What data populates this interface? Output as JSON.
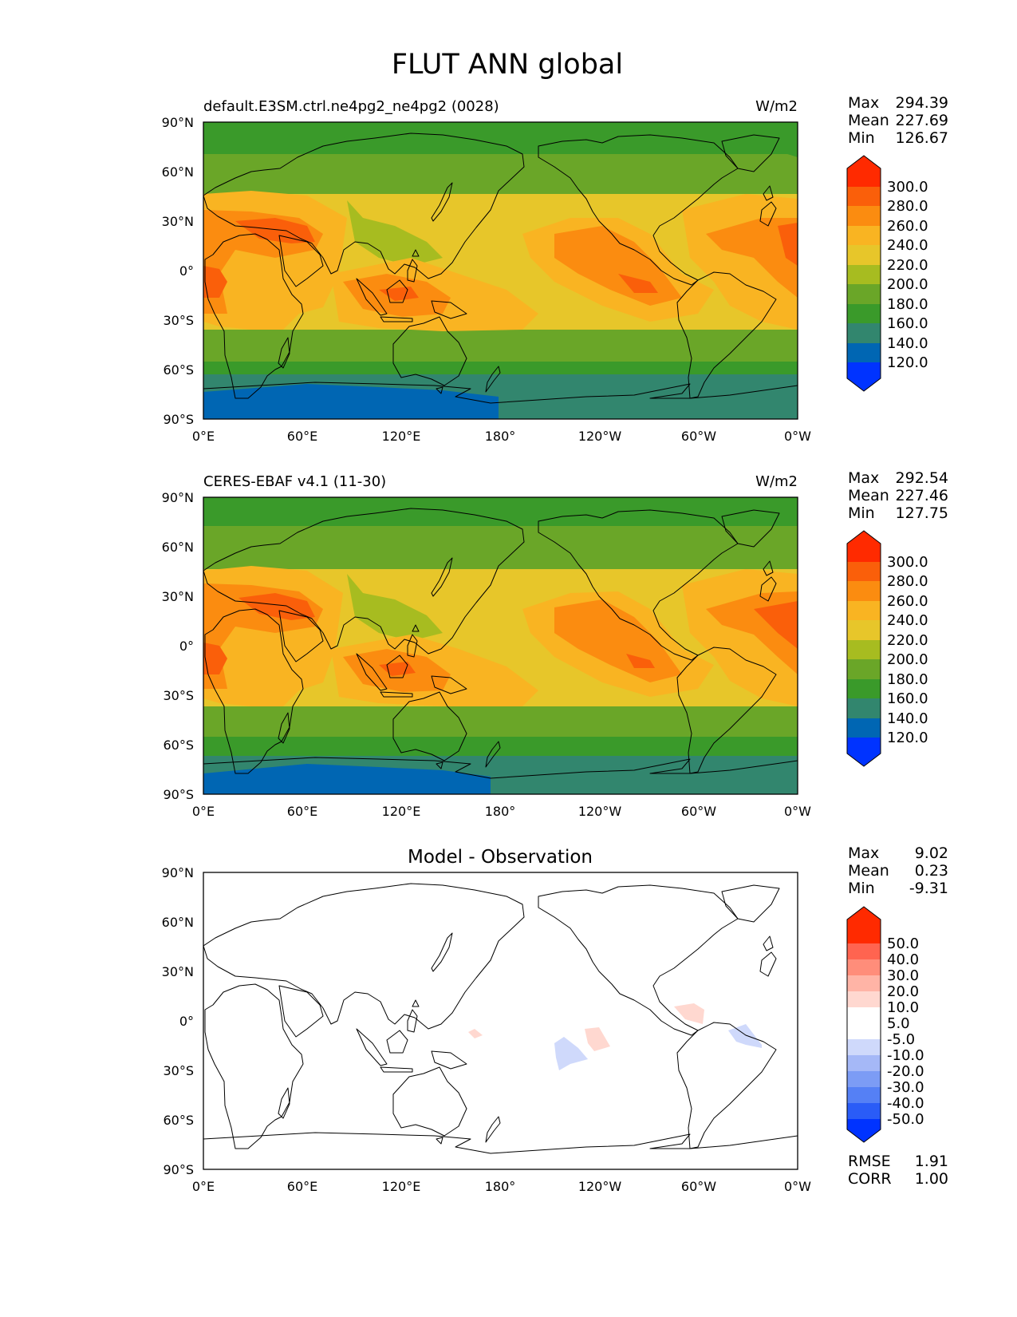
{
  "figure_title": "FLUT ANN global",
  "colors": {
    "ramp": [
      "#0033ff",
      "#0066b3",
      "#32866e",
      "#3a9a2a",
      "#6aa628",
      "#a7bc20",
      "#e7c62a",
      "#f9b422",
      "#fb8c10",
      "#fa5f0a",
      "#ff2a00"
    ],
    "diff": [
      "#0033ff",
      "#2a5cf7",
      "#5580f5",
      "#7c9cf5",
      "#a5b8f7",
      "#cfd9fb",
      "#ffffff",
      "#ffd8d0",
      "#ffb4a6",
      "#ff8d7a",
      "#ff6450",
      "#ff2a00"
    ]
  },
  "xticks": [
    "0°E",
    "60°E",
    "120°E",
    "180°",
    "120°W",
    "60°W",
    "0°W"
  ],
  "yticks": [
    "90°N",
    "60°N",
    "30°N",
    "0°",
    "30°S",
    "60°S",
    "90°S"
  ],
  "panels": [
    {
      "name": "test",
      "title_left": "default.E3SM.ctrl.ne4pg2_ne4pg2 (0028)",
      "title_right": "W/m2",
      "stats_labels": [
        "Max",
        "Mean",
        "Min"
      ],
      "stats_values": [
        "294.39",
        "227.69",
        "126.67"
      ],
      "colorbar_labels": [
        "300.0",
        "280.0",
        "260.0",
        "240.0",
        "220.0",
        "200.0",
        "180.0",
        "160.0",
        "140.0",
        "120.0"
      ]
    },
    {
      "name": "reference",
      "title_left": "CERES-EBAF v4.1 (11-30)",
      "title_right": "W/m2",
      "stats_labels": [
        "Max",
        "Mean",
        "Min"
      ],
      "stats_values": [
        "292.54",
        "227.46",
        "127.75"
      ],
      "colorbar_labels": [
        "300.0",
        "280.0",
        "260.0",
        "240.0",
        "220.0",
        "200.0",
        "180.0",
        "160.0",
        "140.0",
        "120.0"
      ]
    },
    {
      "name": "difference",
      "title_center": "Model - Observation",
      "stats_labels": [
        "Max",
        "Mean",
        "Min"
      ],
      "stats_values": [
        "9.02",
        "0.23",
        "-9.31"
      ],
      "colorbar_labels": [
        "50.0",
        "40.0",
        "30.0",
        "20.0",
        "10.0",
        "5.0",
        "-5.0",
        "-10.0",
        "-20.0",
        "-30.0",
        "-40.0",
        "-50.0"
      ],
      "metrics_labels": [
        "RMSE",
        "CORR"
      ],
      "metrics_values": [
        "1.91",
        "1.00"
      ]
    }
  ]
}
